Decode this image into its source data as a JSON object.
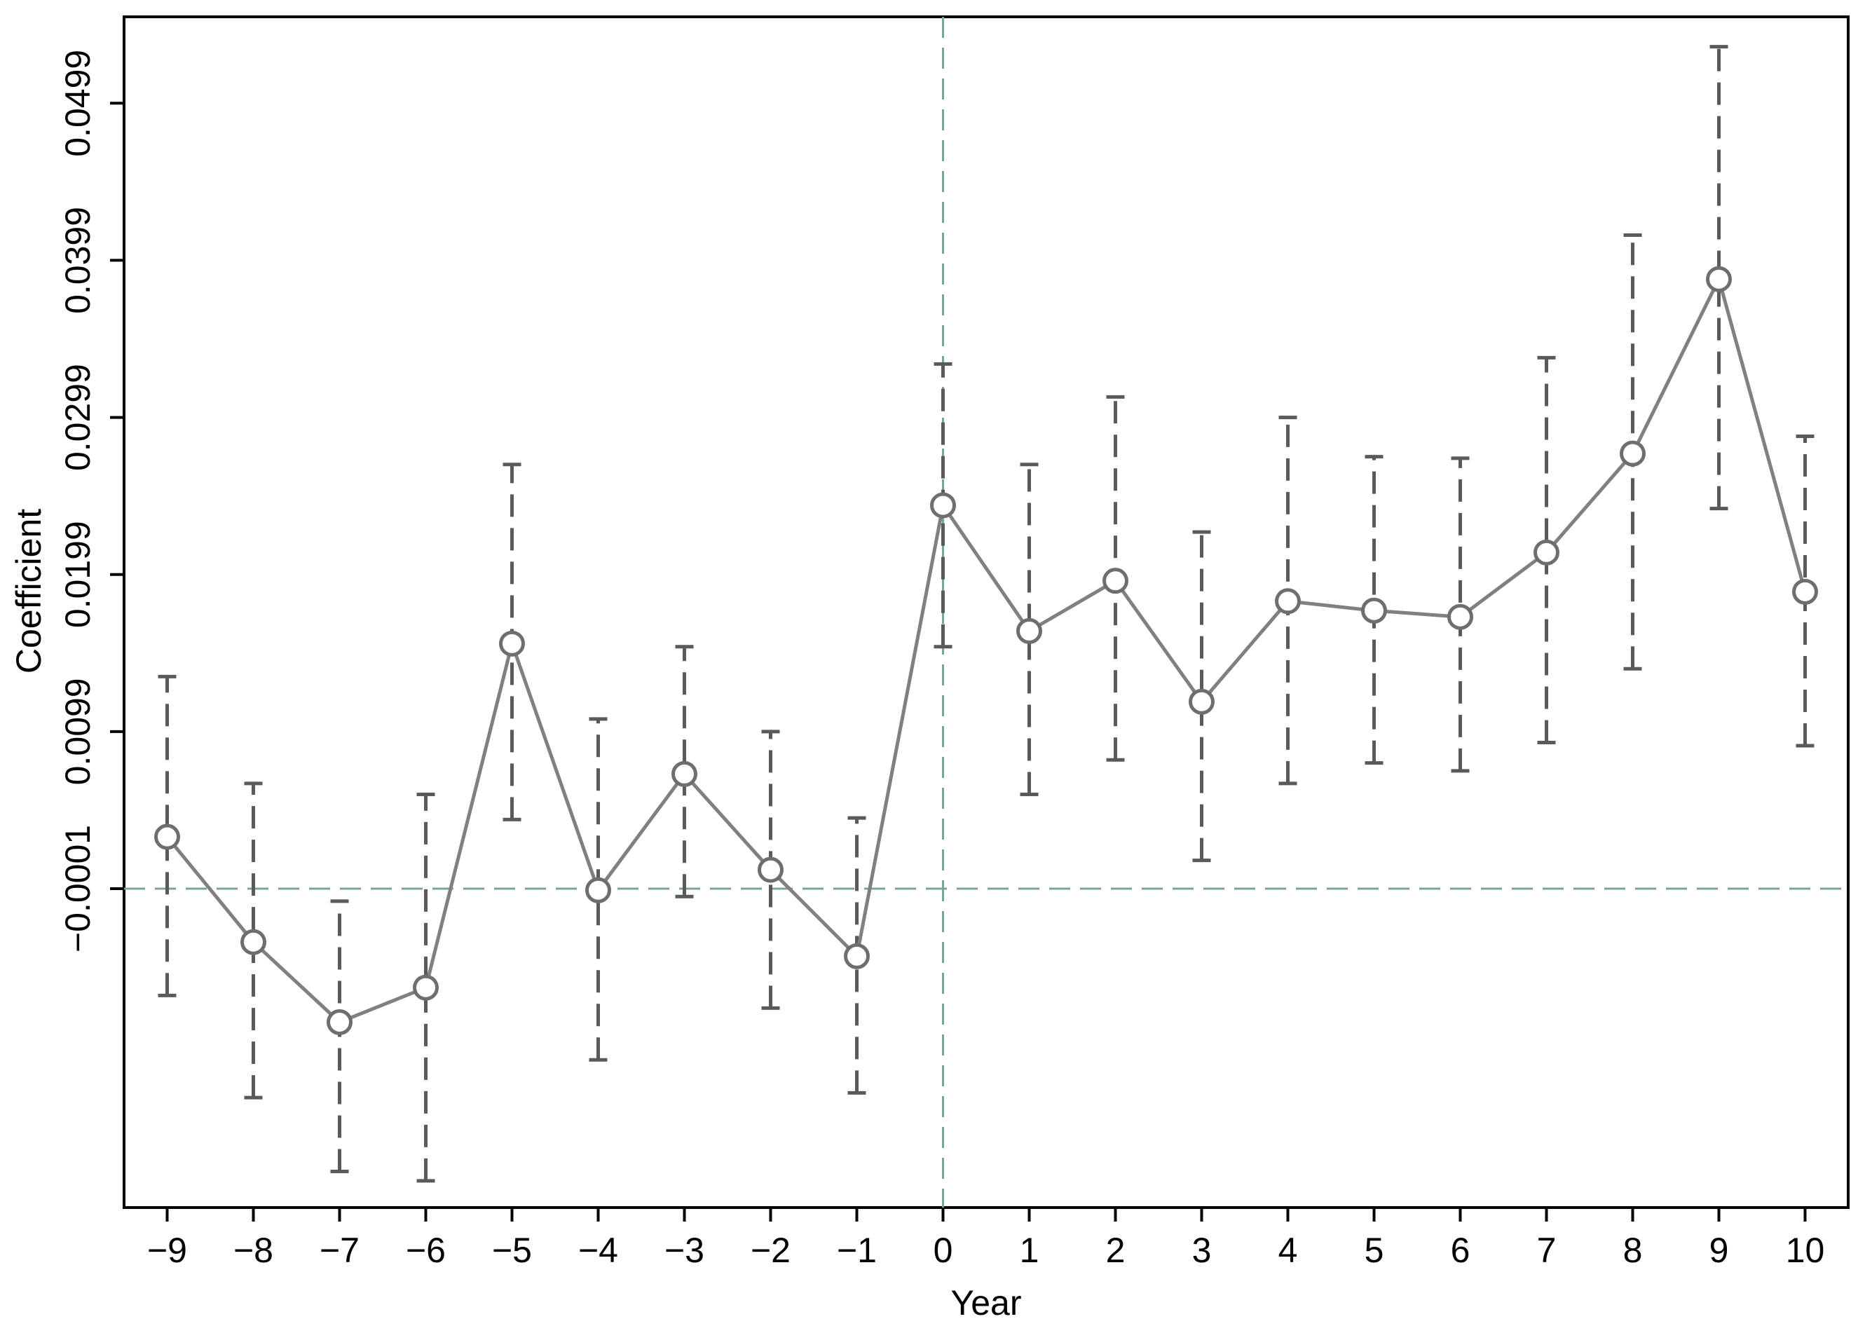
{
  "chart_data": {
    "type": "line",
    "title": "",
    "xlabel": "Year",
    "ylabel": "Coefficient",
    "x": [
      -9,
      -8,
      -7,
      -6,
      -5,
      -4,
      -3,
      -2,
      -1,
      0,
      1,
      2,
      3,
      4,
      5,
      6,
      7,
      8,
      9,
      10
    ],
    "x_tick_labels": [
      "−9",
      "−8",
      "−7",
      "−6",
      "−5",
      "−4",
      "−3",
      "−2",
      "−1",
      "0",
      "1",
      "2",
      "3",
      "4",
      "5",
      "6",
      "7",
      "8",
      "9",
      "10"
    ],
    "series": [
      {
        "values": [
          0.0032,
          -0.0035,
          -0.0086,
          -0.0064,
          0.0155,
          -0.0002,
          0.0072,
          0.0011,
          -0.0044,
          0.0243,
          0.0163,
          0.0195,
          0.0118,
          0.0182,
          0.0176,
          0.0172,
          0.0213,
          0.0276,
          0.0387,
          0.0188
        ],
        "ci_lower": [
          -0.0069,
          -0.0134,
          -0.0181,
          -0.0187,
          0.0043,
          -0.011,
          -0.0006,
          -0.0077,
          -0.0131,
          0.0153,
          0.0059,
          0.0081,
          0.0017,
          0.0066,
          0.0079,
          0.0074,
          0.0092,
          0.0139,
          0.0241,
          0.009
        ],
        "ci_upper": [
          0.0134,
          0.0066,
          -0.0009,
          0.0059,
          0.0269,
          0.0107,
          0.0153,
          0.0099,
          0.0044,
          0.0333,
          0.0269,
          0.0312,
          0.0226,
          0.0299,
          0.0274,
          0.0273,
          0.0337,
          0.0415,
          0.0535,
          0.0287
        ]
      }
    ],
    "y_ticks": [
      -0.0001,
      0.0099,
      0.0199,
      0.0299,
      0.0399,
      0.0499
    ],
    "y_tick_labels": [
      "−0.0001",
      "0.0099",
      "0.0199",
      "0.0299",
      "0.0399",
      "0.0499"
    ],
    "ylim": [
      -0.0204,
      0.0554
    ],
    "xlim": [
      -9.5,
      10.5
    ],
    "reference_lines": {
      "x": 0,
      "y": -0.0001
    },
    "grid": false,
    "legend": "none",
    "colors": {
      "line": "#808080",
      "marker": "#6e6e6e",
      "ci": "#5a5a5a",
      "reference": "#7aa595",
      "axis": "#000000"
    }
  }
}
